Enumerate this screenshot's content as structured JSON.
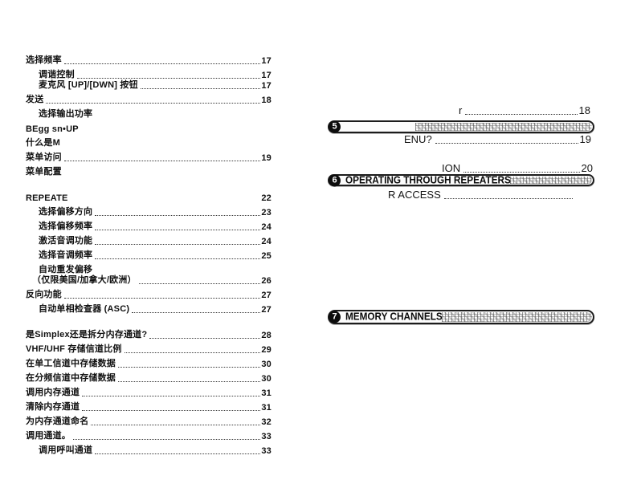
{
  "colors": {
    "background": "#ffffff",
    "text": "#111111",
    "banner_ink": "#0d0d0d"
  },
  "left_column": {
    "entries": [
      {
        "label": "选择频率",
        "page": "17",
        "level": 0,
        "dots": true,
        "spacing": "normal"
      },
      {
        "label": "调谐控制",
        "page": "17",
        "level": 1,
        "dots": true,
        "spacing": "normal"
      },
      {
        "label": "麦克风 [UP]/[DWN] 按钮",
        "page": "17",
        "level": 1,
        "dots": true,
        "spacing": "tight"
      },
      {
        "label": "发送",
        "page": "18",
        "level": 0,
        "dots": true,
        "spacing": "normal"
      },
      {
        "label": "选择输出功率",
        "page": "",
        "level": 1,
        "dots": false,
        "spacing": "normal"
      },
      {
        "label": "BEgg sn•UP",
        "page": "",
        "level": 0,
        "dots": false,
        "spacing": "normal"
      },
      {
        "label": "什么是M",
        "page": "",
        "level": 0,
        "dots": false,
        "spacing": "normal"
      },
      {
        "label": "菜单访问",
        "page": "19",
        "level": 0,
        "dots": true,
        "spacing": "normal"
      },
      {
        "label": "菜单配置",
        "page": "",
        "level": 0,
        "dots": false,
        "spacing": "normal"
      },
      {
        "label": "REPEATE",
        "page": "22",
        "level": 0,
        "dots": false,
        "spacing": "gap"
      },
      {
        "label": "选择偏移方向",
        "page": "23",
        "level": 1,
        "dots": true,
        "spacing": "normal"
      },
      {
        "label": "选择偏移频率",
        "page": "24",
        "level": 1,
        "dots": true,
        "spacing": "normal"
      },
      {
        "label": "激活音调功能",
        "page": "24",
        "level": 1,
        "dots": true,
        "spacing": "normal"
      },
      {
        "label": "选择音调频率",
        "page": "25",
        "level": 1,
        "dots": true,
        "spacing": "normal"
      },
      {
        "label": "自动重发偏移",
        "page": "",
        "level": 1,
        "dots": false,
        "spacing": "normal"
      },
      {
        "label": "（仅限美国/加拿大/欧洲）",
        "page": "26",
        "level": 0.5,
        "dots": true,
        "spacing": "tight"
      },
      {
        "label": "反向功能",
        "page": "27",
        "level": 0,
        "dots": true,
        "spacing": "normal"
      },
      {
        "label": "自动单相检查器 (ASC)",
        "page": "27",
        "level": 1,
        "dots": true,
        "spacing": "normal"
      },
      {
        "label": "是Simplex还是拆分内存通道?",
        "page": "28",
        "level": 0,
        "dots": true,
        "spacing": "gap"
      },
      {
        "label": "VHF/UHF 存储信道比例",
        "page": "29",
        "level": 0,
        "dots": true,
        "spacing": "normal"
      },
      {
        "label": "在单工信道中存储数据",
        "page": "30",
        "level": 0,
        "dots": true,
        "spacing": "normal"
      },
      {
        "label": "在分频信道中存储数据",
        "page": "30",
        "level": 0,
        "dots": true,
        "spacing": "normal"
      },
      {
        "label": "调用内存通道",
        "page": "31",
        "level": 0,
        "dots": true,
        "spacing": "normal"
      },
      {
        "label": "清除内存通道",
        "page": "31",
        "level": 0,
        "dots": true,
        "spacing": "normal"
      },
      {
        "label": "为内存通道命名",
        "page": "32",
        "level": 0,
        "dots": true,
        "spacing": "normal"
      },
      {
        "label": "调用通道。",
        "page": "33",
        "level": 0,
        "dots": true,
        "spacing": "normal"
      },
      {
        "label": "调用呼叫通道",
        "page": "33",
        "level": 1,
        "dots": true,
        "spacing": "normal"
      }
    ]
  },
  "right_column": {
    "toc_lines": [
      {
        "label": "r",
        "page": "18"
      },
      {
        "label": "ENU?",
        "page": "19"
      },
      {
        "label": "ION",
        "page": "20"
      },
      {
        "label": "R ACCESS",
        "page": ""
      }
    ],
    "banners": [
      {
        "number": "5",
        "title": ""
      },
      {
        "number": "6",
        "title": "OPERATING THROUGH REPEATERS"
      },
      {
        "number": "7",
        "title": "MEMORY CHANNELS"
      }
    ]
  }
}
